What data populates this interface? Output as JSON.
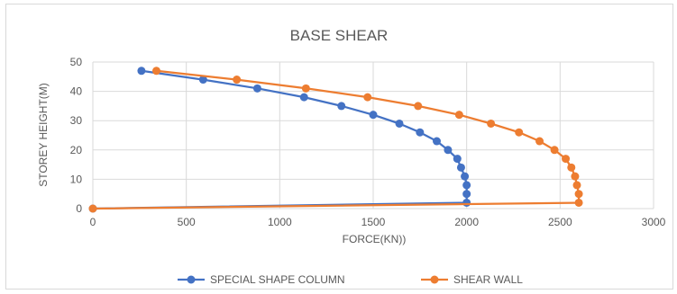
{
  "chart_data": {
    "type": "line",
    "title": "BASE SHEAR",
    "xlabel": "FORCE(KN))",
    "ylabel": "STOREY HEIGHT(M)",
    "xlim": [
      0,
      3000
    ],
    "ylim": [
      0,
      50
    ],
    "xticks": [
      "0",
      "500",
      "1000",
      "1500",
      "2000",
      "2500",
      "3000"
    ],
    "yticks": [
      "0",
      "10",
      "20",
      "30",
      "40",
      "50"
    ],
    "grid": true,
    "legend": "bottom",
    "series": [
      {
        "name": "SPECIAL SHAPE COLUMN",
        "color": "#4472C4",
        "points": [
          {
            "x": 0,
            "y": 0
          },
          {
            "x": 2000,
            "y": 2
          },
          {
            "x": 2000,
            "y": 5
          },
          {
            "x": 2000,
            "y": 8
          },
          {
            "x": 1990,
            "y": 11
          },
          {
            "x": 1970,
            "y": 14
          },
          {
            "x": 1950,
            "y": 17
          },
          {
            "x": 1900,
            "y": 20
          },
          {
            "x": 1840,
            "y": 23
          },
          {
            "x": 1750,
            "y": 26
          },
          {
            "x": 1640,
            "y": 29
          },
          {
            "x": 1500,
            "y": 32
          },
          {
            "x": 1330,
            "y": 35
          },
          {
            "x": 1130,
            "y": 38
          },
          {
            "x": 880,
            "y": 41
          },
          {
            "x": 590,
            "y": 44
          },
          {
            "x": 260,
            "y": 47
          }
        ]
      },
      {
        "name": "SHEAR WALL",
        "color": "#ED7D31",
        "points": [
          {
            "x": 0,
            "y": 0
          },
          {
            "x": 2600,
            "y": 2
          },
          {
            "x": 2600,
            "y": 5
          },
          {
            "x": 2590,
            "y": 8
          },
          {
            "x": 2580,
            "y": 11
          },
          {
            "x": 2560,
            "y": 14
          },
          {
            "x": 2530,
            "y": 17
          },
          {
            "x": 2470,
            "y": 20
          },
          {
            "x": 2390,
            "y": 23
          },
          {
            "x": 2280,
            "y": 26
          },
          {
            "x": 2130,
            "y": 29
          },
          {
            "x": 1960,
            "y": 32
          },
          {
            "x": 1740,
            "y": 35
          },
          {
            "x": 1470,
            "y": 38
          },
          {
            "x": 1140,
            "y": 41
          },
          {
            "x": 770,
            "y": 44
          },
          {
            "x": 340,
            "y": 47
          }
        ]
      }
    ]
  }
}
